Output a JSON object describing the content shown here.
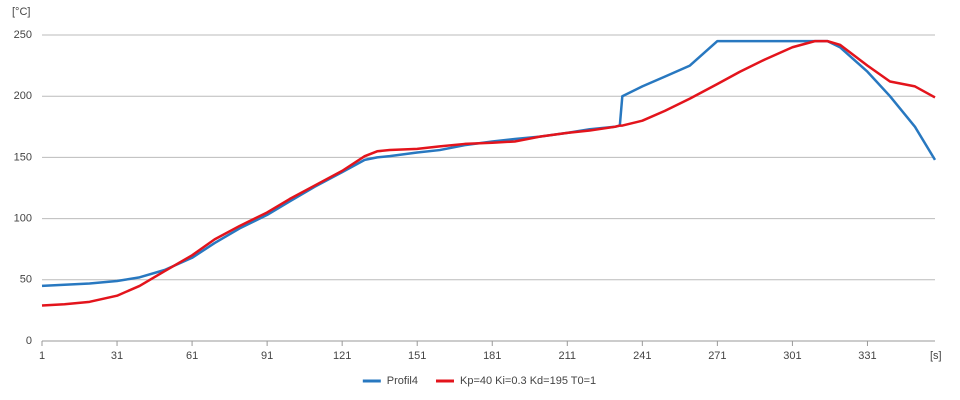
{
  "chart_data": {
    "type": "line",
    "y_label": "[°C]",
    "x_label": "[s]",
    "x": [
      1,
      10,
      20,
      31,
      40,
      50,
      61,
      70,
      80,
      91,
      100,
      110,
      121,
      130,
      135,
      140,
      151,
      160,
      170,
      181,
      190,
      200,
      211,
      220,
      230,
      232,
      233,
      241,
      250,
      260,
      271,
      280,
      290,
      301,
      310,
      315,
      320,
      331,
      340,
      350,
      358
    ],
    "series": [
      {
        "name": "Profil4",
        "color": "#2878c0",
        "values": [
          45,
          46,
          47,
          49,
          52,
          58,
          68,
          80,
          92,
          103,
          114,
          126,
          138,
          148,
          150,
          151,
          154,
          156,
          160,
          163,
          165,
          167,
          170,
          173,
          175,
          176,
          200,
          208,
          216,
          225,
          245,
          245,
          245,
          245,
          245,
          245,
          240,
          220,
          200,
          175,
          148
        ]
      },
      {
        "name": "Kp=40 Ki=0.3 Kd=195 T0=1",
        "color": "#e3141c",
        "values": [
          29,
          30,
          32,
          37,
          45,
          57,
          70,
          83,
          94,
          105,
          116,
          127,
          139,
          151,
          155,
          156,
          157,
          159,
          161,
          162,
          163,
          167,
          170,
          172,
          175,
          176,
          176,
          180,
          188,
          198,
          210,
          220,
          230,
          240,
          245,
          245,
          242,
          225,
          212,
          208,
          199
        ]
      }
    ],
    "xlim": [
      1,
      358
    ],
    "xticks": [
      1,
      31,
      61,
      91,
      121,
      151,
      181,
      211,
      241,
      271,
      301,
      331
    ],
    "ylim": [
      0,
      250
    ],
    "yticks": [
      0,
      50,
      100,
      150,
      200,
      250
    ],
    "grid": true,
    "legend": "bottom"
  }
}
